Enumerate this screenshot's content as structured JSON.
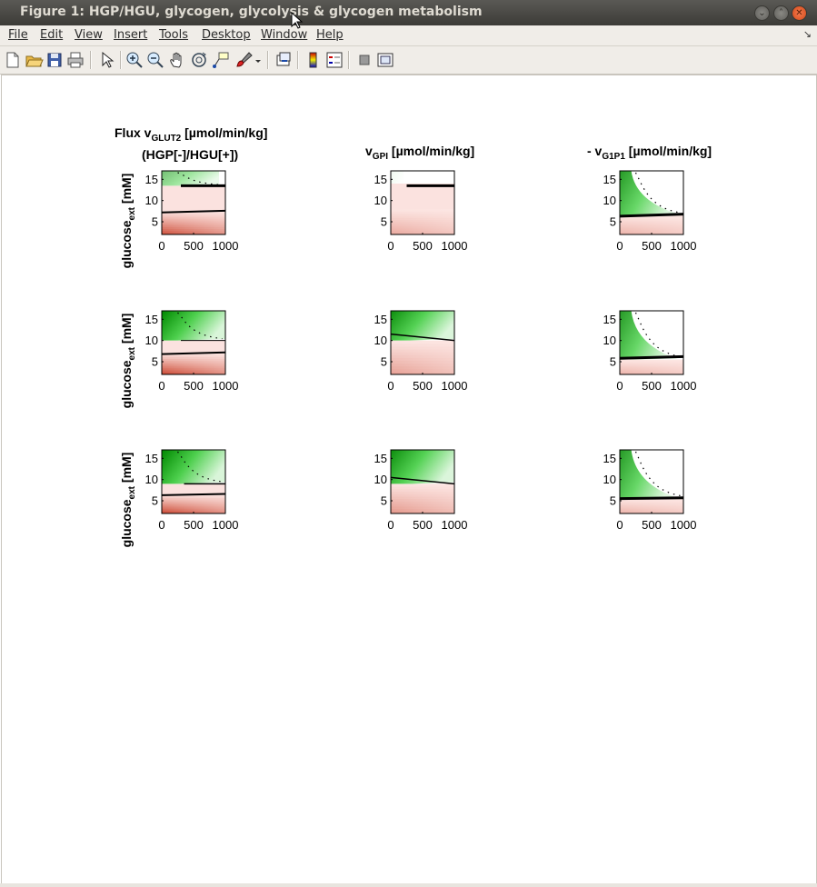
{
  "window": {
    "title": "Figure 1: HGP/HGU, glycogen, glycolysis & glycogen metabolism",
    "controls": [
      "minimize-icon",
      "maximize-icon",
      "close-icon"
    ]
  },
  "menu": {
    "items": [
      {
        "label": "File"
      },
      {
        "label": "Edit"
      },
      {
        "label": "View"
      },
      {
        "label": "Insert"
      },
      {
        "label": "Tools"
      },
      {
        "label": "Desktop"
      },
      {
        "label": "Window"
      },
      {
        "label": "Help"
      }
    ],
    "corner": "↘"
  },
  "toolbar": {
    "buttons": [
      "new-figure-icon",
      "open-file-icon",
      "save-icon",
      "print-icon",
      "edit-plot-icon",
      "zoom-in-icon",
      "zoom-out-icon",
      "pan-icon",
      "rotate-3d-icon",
      "data-cursor-icon",
      "brush-icon",
      "brush-dropdown-icon",
      "link-plot-icon",
      "colorbar-icon",
      "legend-icon",
      "hide-plot-tools-icon",
      "show-plot-tools-icon"
    ]
  },
  "figure": {
    "colors": {
      "green": "#00bb00",
      "red": "#c83a23",
      "line": "#000000"
    },
    "col_titles": [
      {
        "prefix": "Flux v",
        "sub": "GLUT2",
        "suffix": " [µmol/min/kg]",
        "line2": "(HGP[-]/HGU[+])"
      },
      {
        "prefix": "v",
        "sub": "GPI",
        "suffix": " [µmol/min/kg]",
        "line2": ""
      },
      {
        "prefix": "- v",
        "sub": "G1P1",
        "suffix": " [µmol/min/kg]",
        "line2": ""
      }
    ],
    "ylabel": {
      "main": "glucose",
      "sub": "ext",
      "unit": " [mM]"
    },
    "x_ticks": [
      0,
      500,
      1000
    ],
    "y_ticks": [
      5,
      10,
      15
    ]
  },
  "chart_data": [
    {
      "type": "heatmap",
      "row": 0,
      "col": 0,
      "xlim": [
        0,
        1000
      ],
      "ylim": [
        2,
        17
      ],
      "green": {
        "ymin": 13.5,
        "ymax": 17,
        "xend": 0.3,
        "tail": 0.9,
        "strength": 0.55
      },
      "red": {
        "ymax": 7.5,
        "strength": 0.85
      },
      "light": [
        7.5,
        13.5
      ],
      "thresholds": [
        {
          "y0": 13.5,
          "y1": 13.5,
          "x0": 0.3,
          "w": 3
        },
        {
          "y0": 7.2,
          "y1": 7.6,
          "x0": 0,
          "w": 2
        }
      ],
      "dotted": true
    },
    {
      "type": "heatmap",
      "row": 0,
      "col": 1,
      "xlim": [
        0,
        1000
      ],
      "ylim": [
        2,
        17
      ],
      "green": {
        "ymin": 14,
        "ymax": 17,
        "xend": 0.05,
        "tail": 0.2,
        "strength": 0.05
      },
      "red": {
        "ymax": 8,
        "strength": 0.35
      },
      "light": [
        8,
        14
      ],
      "thresholds": [
        {
          "y0": 13.5,
          "y1": 13.5,
          "x0": 0.25,
          "w": 3
        }
      ],
      "dotted": false
    },
    {
      "type": "heatmap",
      "row": 0,
      "col": 2,
      "xlim": [
        0,
        1000
      ],
      "ylim": [
        2,
        17
      ],
      "green": {
        "ymin": 6.5,
        "ymax": 17,
        "xend": 0.95,
        "tail": 0.2,
        "strength": 0.85
      },
      "red": {
        "ymax": 6.5,
        "strength": 0.3
      },
      "light": [
        0,
        0
      ],
      "thresholds": [
        {
          "y0": 6.3,
          "y1": 6.8,
          "x0": 0,
          "w": 3
        }
      ],
      "dotted": true
    },
    {
      "type": "heatmap",
      "row": 1,
      "col": 0,
      "xlim": [
        0,
        1000
      ],
      "ylim": [
        2,
        17
      ],
      "green": {
        "ymin": 10,
        "ymax": 17,
        "xend": 0.25,
        "tail": 1,
        "strength": 1
      },
      "red": {
        "ymax": 7,
        "strength": 0.9
      },
      "light": [
        7,
        10
      ],
      "thresholds": [
        {
          "y0": 10,
          "y1": 10,
          "x0": 0.3,
          "w": 1
        },
        {
          "y0": 6.8,
          "y1": 7.2,
          "x0": 0,
          "w": 2
        }
      ],
      "dotted": true
    },
    {
      "type": "heatmap",
      "row": 1,
      "col": 1,
      "xlim": [
        0,
        1000
      ],
      "ylim": [
        2,
        17
      ],
      "green": {
        "ymin": 10,
        "ymax": 17,
        "xend": 0.3,
        "tail": 1,
        "strength": 0.95
      },
      "red": {
        "ymax": 10,
        "strength": 0.4
      },
      "light": [
        0,
        0
      ],
      "thresholds": [
        {
          "y0": 11.5,
          "y1": 10,
          "x0": 0,
          "w": 1.5
        }
      ],
      "dotted": false
    },
    {
      "type": "heatmap",
      "row": 1,
      "col": 2,
      "xlim": [
        0,
        1000
      ],
      "ylim": [
        2,
        17
      ],
      "green": {
        "ymin": 5.5,
        "ymax": 17,
        "xend": 0.9,
        "tail": 0.15,
        "strength": 0.85
      },
      "red": {
        "ymax": 5.5,
        "strength": 0.3
      },
      "light": [
        0,
        0
      ],
      "thresholds": [
        {
          "y0": 5.8,
          "y1": 6.2,
          "x0": 0,
          "w": 3
        }
      ],
      "dotted": true
    },
    {
      "type": "heatmap",
      "row": 2,
      "col": 0,
      "xlim": [
        0,
        1000
      ],
      "ylim": [
        2,
        17
      ],
      "green": {
        "ymin": 9,
        "ymax": 17,
        "xend": 0.3,
        "tail": 1,
        "strength": 1
      },
      "red": {
        "ymax": 6.5,
        "strength": 0.9
      },
      "light": [
        6.5,
        9
      ],
      "thresholds": [
        {
          "y0": 9,
          "y1": 9,
          "x0": 0.35,
          "w": 1.5
        },
        {
          "y0": 6.3,
          "y1": 6.6,
          "x0": 0,
          "w": 2
        }
      ],
      "dotted": true
    },
    {
      "type": "heatmap",
      "row": 2,
      "col": 1,
      "xlim": [
        0,
        1000
      ],
      "ylim": [
        2,
        17
      ],
      "green": {
        "ymin": 9,
        "ymax": 17,
        "xend": 0.35,
        "tail": 1,
        "strength": 0.95
      },
      "red": {
        "ymax": 9,
        "strength": 0.45
      },
      "light": [
        0,
        0
      ],
      "thresholds": [
        {
          "y0": 10.5,
          "y1": 9,
          "x0": 0,
          "w": 1.5
        }
      ],
      "dotted": false
    },
    {
      "type": "heatmap",
      "row": 2,
      "col": 2,
      "xlim": [
        0,
        1000
      ],
      "ylim": [
        2,
        17
      ],
      "green": {
        "ymin": 5.5,
        "ymax": 17,
        "xend": 0.9,
        "tail": 0.15,
        "strength": 0.85
      },
      "red": {
        "ymax": 5.5,
        "strength": 0.3
      },
      "light": [
        0,
        0
      ],
      "thresholds": [
        {
          "y0": 5.5,
          "y1": 5.7,
          "x0": 0,
          "w": 3
        }
      ],
      "dotted": true
    }
  ]
}
